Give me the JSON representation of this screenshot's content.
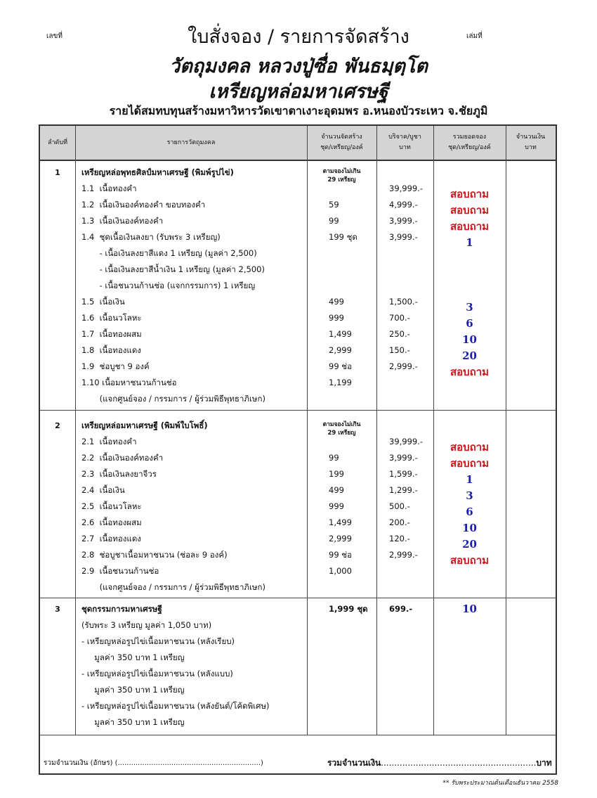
{
  "header": {
    "number_label": "เลขที่",
    "book_label": "เล่มที่",
    "title": "ใบสั่งจอง / รายการจัดสร้าง",
    "subtitle1": "วัตถุมงคล หลวงปู่ซื่อ พันธมฺตฺโต",
    "subtitle2": "เหรียญหล่อมหาเศรษฐี",
    "subtitle3": "รายได้สมทบทุนสร้างมหาวิหารวัดเขาตาเงาะอุดมพร อ.หนองบัวระเหว จ.ชัยภูมิ"
  },
  "columns": [
    {
      "l1": "ลำดับที่",
      "l2": ""
    },
    {
      "l1": "รายการวัตถุมงคล",
      "l2": ""
    },
    {
      "l1": "จำนวนจัดสร้าง",
      "l2": "ชุด/เหรียญ/องค์"
    },
    {
      "l1": "บริจาค/บูชา",
      "l2": "บาท"
    },
    {
      "l1": "รวมยอดจอง",
      "l2": "ชุด/เหรียญ/องค์"
    },
    {
      "l1": "จำนวนเงิน",
      "l2": "บาท"
    }
  ],
  "colors": {
    "red": "#d0141b",
    "blue": "#1a1fb0"
  },
  "sections": [
    {
      "no": "1",
      "quota_note": [
        "ตามจองไม่เกิน",
        "29 เหรียญ"
      ],
      "lines": [
        {
          "text": "เหรียญหล่อพุทธศิลป์มหาเศรษฐี (พิมพ์รูปไข่)",
          "bold": true
        },
        {
          "text": "1.1  เนื้อทองคำ",
          "qty": "",
          "price": "39,999.-",
          "total": "สอบถาม",
          "color": "red"
        },
        {
          "text": "1.2  เนื้อเงินองค์ทองคำ ขอบทองคำ",
          "qty": "59",
          "price": "4,999.-",
          "total": "สอบถาม",
          "color": "red"
        },
        {
          "text": "1.3  เนื้อเงินองค์ทองคำ",
          "qty": "99",
          "price": "3,999.-",
          "total": "สอบถาม",
          "color": "red"
        },
        {
          "text": "1.4  ชุดเนื้อเงินลงยา (รับพระ 3 เหรียญ)",
          "qty": "199 ชุด",
          "price": "3,999.-",
          "total": "1",
          "color": "blue"
        },
        {
          "text": "       - เนื้อเงินลงยาสีแดง 1 เหรียญ (มูลค่า 2,500)"
        },
        {
          "text": "       - เนื้อเงินลงยาสีน้ำเงิน 1 เหรียญ (มูลค่า 2,500)"
        },
        {
          "text": "       - เนื้อชนวนก้านช่อ (แจกกรรมการ) 1 เหรียญ"
        },
        {
          "text": "1.5  เนื้อเงิน",
          "qty": "499",
          "price": "1,500.-",
          "total": "3",
          "color": "blue"
        },
        {
          "text": "1.6  เนื้อนวโลหะ",
          "qty": "999",
          "price": "700.-",
          "total": "6",
          "color": "blue"
        },
        {
          "text": "1.7  เนื้อทองผสม",
          "qty": "1,499",
          "price": "250.-",
          "total": "10",
          "color": "blue"
        },
        {
          "text": "1.8  เนื้อทองแดง",
          "qty": "2,999",
          "price": "150.-",
          "total": "20",
          "color": "blue"
        },
        {
          "text": "1.9  ช่อบูชา 9 องค์",
          "qty": "99 ช่อ",
          "price": "2,999.-",
          "total": "สอบถาม",
          "color": "red"
        },
        {
          "text": "1.10 เนื้อมหาชนวนก้านช่อ",
          "qty": "1,199"
        },
        {
          "text": "       (แจกศูนย์จอง / กรรมการ / ผู้ร่วมพิธีพุทธาภิเษก)"
        }
      ]
    },
    {
      "no": "2",
      "quota_note": [
        "ตามจองไม่เกิน",
        "29 เหรียญ"
      ],
      "lines": [
        {
          "text": "เหรียญหล่อมหาเศรษฐี (พิมพ์ใบโพธิ์)",
          "bold": true
        },
        {
          "text": "2.1  เนื้อทองคำ",
          "qty": "",
          "price": "39,999.-",
          "total": "สอบถาม",
          "color": "red"
        },
        {
          "text": "2.2  เนื้อเงินองค์ทองคำ",
          "qty": "99",
          "price": "3,999.-",
          "total": "สอบถาม",
          "color": "red"
        },
        {
          "text": "2.3  เนื้อเงินลงยาจีวร",
          "qty": "199",
          "price": "1,599.-",
          "total": "1",
          "color": "blue"
        },
        {
          "text": "2.4  เนื้อเงิน",
          "qty": "499",
          "price": "1,299.-",
          "total": "3",
          "color": "blue"
        },
        {
          "text": "2.5  เนื้อนวโลหะ",
          "qty": "999",
          "price": "500.-",
          "total": "6",
          "color": "blue"
        },
        {
          "text": "2.6  เนื้อทองผสม",
          "qty": "1,499",
          "price": "200.-",
          "total": "10",
          "color": "blue"
        },
        {
          "text": "2.7  เนื้อทองแดง",
          "qty": "2,999",
          "price": "120.-",
          "total": "20",
          "color": "blue"
        },
        {
          "text": "2.8  ช่อบูชาเนื้อมหาชนวน (ช่อละ 9 องค์)",
          "qty": "99 ช่อ",
          "price": "2,999.-",
          "total": "สอบถาม",
          "color": "red"
        },
        {
          "text": "2.9  เนื้อชนวนก้านช่อ",
          "qty": "1,000"
        },
        {
          "text": "       (แจกศูนย์จอง / กรรมการ / ผู้ร่วมพิธีพุทธาภิเษก)"
        }
      ]
    },
    {
      "no": "3",
      "lines": [
        {
          "text": "ชุดกรรมการมหาเศรษฐี",
          "bold": true,
          "qty": "1,999 ชุด",
          "price": "699.-",
          "total": "10",
          "color": "blue"
        },
        {
          "text": "(รับพระ 3 เหรียญ มูลค่า 1,050 บาท)"
        },
        {
          "text": "- เหรียญหล่อรูปไข่เนื้อมหาชนวน (หลังเรียบ)"
        },
        {
          "text": "     มูลค่า 350 บาท 1 เหรียญ"
        },
        {
          "text": "- เหรียญหล่อรูปไข่เนื้อมหาชนวน (หลังแบบ)"
        },
        {
          "text": "     มูลค่า 350 บาท 1 เหรียญ"
        },
        {
          "text": "- เหรียญหล่อรูปไข่เนื้อมหาชนวน (หลังยันต์/โค้ดพิเศษ)"
        },
        {
          "text": "     มูลค่า 350 บาท 1 เหรียญ"
        }
      ]
    }
  ],
  "footer": {
    "words_label": "รวมจำนวนเงิน (อักษร) (",
    "words_blank": "................................................................)",
    "total_label": "รวมจำนวนเงิน",
    "total_blank": "..........................................................",
    "unit": "บาท",
    "note": "** รับพระประมาณต้นเดือนธันวาคม 2558"
  }
}
